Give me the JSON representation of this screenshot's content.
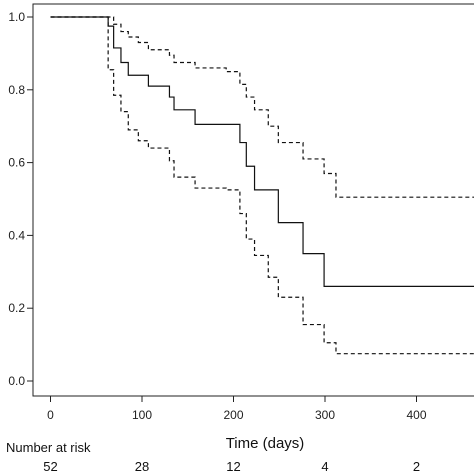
{
  "chart_data": {
    "type": "line",
    "title": "",
    "xlabel": "Time (days)",
    "ylabel": "",
    "xlim": [
      -8,
      466
    ],
    "ylim": [
      0,
      1.0
    ],
    "x_ticks": [
      0,
      100,
      200,
      300,
      400
    ],
    "y_ticks": [
      0.0,
      0.2,
      0.4,
      0.6,
      0.8,
      1.0
    ],
    "y_tick_labels": [
      "0.0",
      "0.2",
      "0.4",
      "0.6",
      "0.8",
      "1.0"
    ],
    "step": true,
    "grid": false,
    "series": [
      {
        "style": "solid",
        "color": "#111111",
        "x": [
          0,
          31,
          63,
          69,
          77,
          85,
          96,
          107,
          130,
          135,
          158,
          192,
          207,
          214,
          223,
          238,
          249,
          264,
          276,
          295,
          299,
          312,
          466
        ],
        "y": [
          1.0,
          1.0,
          0.975,
          0.915,
          0.875,
          0.84,
          0.84,
          0.81,
          0.78,
          0.745,
          0.705,
          0.705,
          0.655,
          0.59,
          0.525,
          0.525,
          0.435,
          0.435,
          0.35,
          0.35,
          0.26,
          0.26,
          0.26
        ]
      },
      {
        "style": "dashed",
        "color": "#111111",
        "x": [
          0,
          31,
          63,
          69,
          77,
          85,
          96,
          107,
          130,
          135,
          158,
          192,
          207,
          214,
          223,
          238,
          249,
          264,
          276,
          295,
          299,
          312,
          466
        ],
        "y": [
          1.0,
          1.0,
          1.0,
          0.98,
          0.96,
          0.945,
          0.93,
          0.91,
          0.895,
          0.875,
          0.86,
          0.85,
          0.815,
          0.78,
          0.745,
          0.7,
          0.655,
          0.655,
          0.61,
          0.61,
          0.57,
          0.505,
          0.505
        ]
      },
      {
        "style": "dashed",
        "color": "#111111",
        "x": [
          0,
          31,
          63,
          69,
          77,
          85,
          96,
          107,
          130,
          135,
          158,
          192,
          207,
          214,
          223,
          238,
          249,
          264,
          276,
          295,
          299,
          312,
          466
        ],
        "y": [
          1.0,
          1.0,
          0.855,
          0.785,
          0.74,
          0.69,
          0.66,
          0.64,
          0.605,
          0.56,
          0.53,
          0.525,
          0.46,
          0.39,
          0.345,
          0.285,
          0.23,
          0.23,
          0.155,
          0.155,
          0.105,
          0.075,
          0.075
        ]
      }
    ],
    "risk_table": {
      "label": "Number at risk",
      "times": [
        0,
        100,
        200,
        300,
        400
      ],
      "counts": [
        "52",
        "28",
        "12",
        "4",
        "2"
      ]
    }
  }
}
